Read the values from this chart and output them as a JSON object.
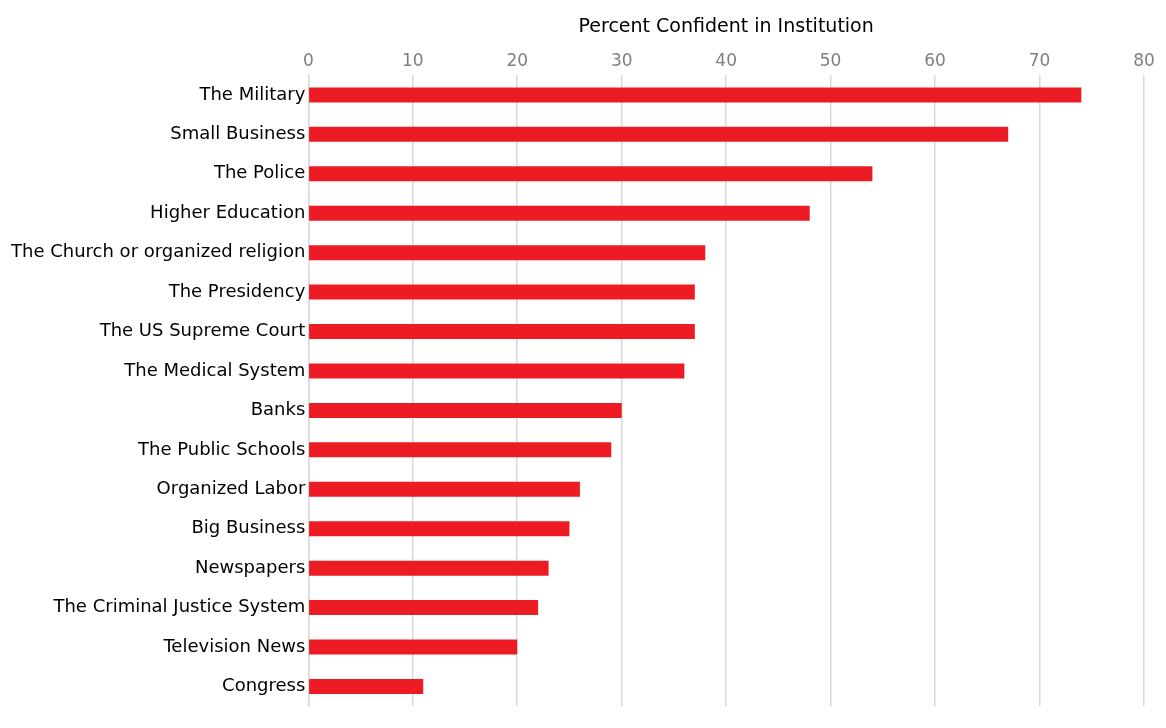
{
  "chart_data": {
    "type": "bar",
    "orientation": "horizontal",
    "xlabel": "Percent Confident in Institution",
    "categories": [
      "The Military",
      "Small Business",
      "The Police",
      "Higher Education",
      "The Church or organized religion",
      "The Presidency",
      "The US Supreme Court",
      "The Medical System",
      "Banks",
      "The Public Schools",
      "Organized Labor",
      "Big Business",
      "Newspapers",
      "The Criminal Justice System",
      "Television News",
      "Congress"
    ],
    "values": [
      74,
      67,
      54,
      48,
      38,
      37,
      37,
      36,
      30,
      29,
      26,
      25,
      23,
      22,
      20,
      11
    ],
    "color": "#ed1c24",
    "xlim": [
      0,
      80
    ],
    "xticks": [
      0,
      10,
      20,
      30,
      40,
      50,
      60,
      70,
      80
    ],
    "grid": "x",
    "legend": false
  }
}
